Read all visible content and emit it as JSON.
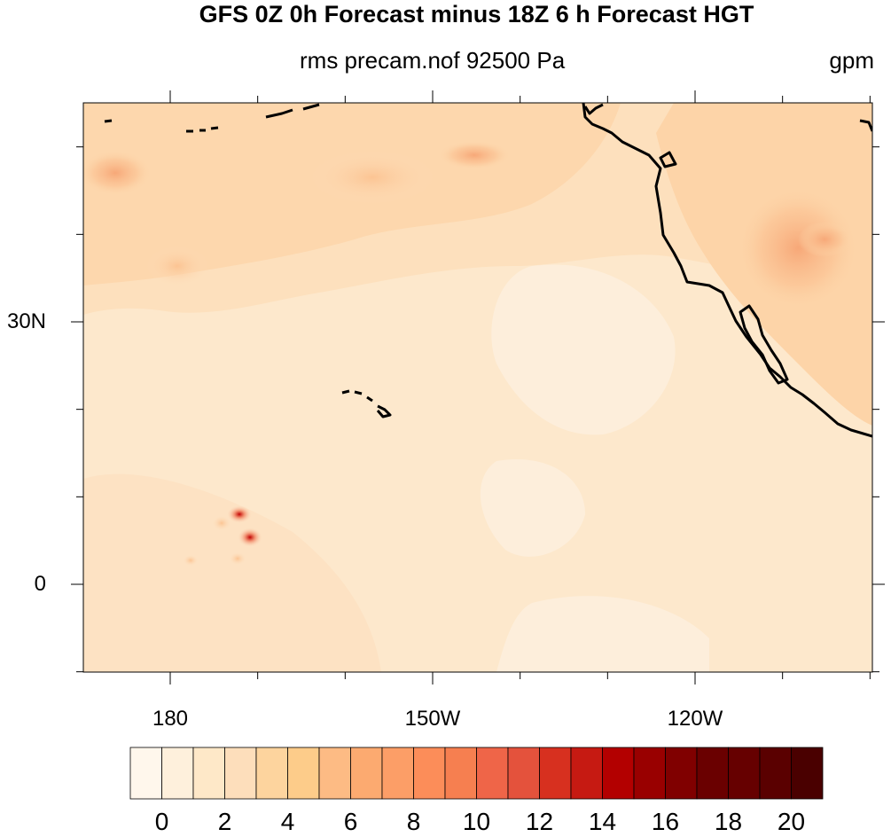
{
  "title": "GFS 0Z 0h Forecast minus 18Z 6 h Forecast HGT",
  "subtitle": "rms precam.nof 92500 Pa",
  "units": "gpm",
  "map": {
    "lat_labels": [
      {
        "text": "30N",
        "lat": 30
      },
      {
        "text": "0",
        "lat": 0
      }
    ],
    "lon_labels": [
      {
        "text": "180",
        "lon": 180
      },
      {
        "text": "150W",
        "lon": 210
      },
      {
        "text": "120W",
        "lon": 240
      }
    ]
  },
  "colorbar": {
    "colors": [
      "#fff7ec",
      "#fef0dc",
      "#fee8c8",
      "#fddebb",
      "#fdd49e",
      "#fdcc8a",
      "#fdbb84",
      "#fcaa70",
      "#fc9e67",
      "#fc8d59",
      "#f67f50",
      "#ef6548",
      "#e4523c",
      "#d7301f",
      "#c61a12",
      "#b30000",
      "#990000",
      "#800000",
      "#6a0000",
      "#660000",
      "#5a0000",
      "#4a0000"
    ],
    "labels": [
      {
        "text": "0",
        "value": 0
      },
      {
        "text": "2",
        "value": 2
      },
      {
        "text": "4",
        "value": 4
      },
      {
        "text": "6",
        "value": 6
      },
      {
        "text": "8",
        "value": 8
      },
      {
        "text": "10",
        "value": 10
      },
      {
        "text": "12",
        "value": 12
      },
      {
        "text": "14",
        "value": 14
      },
      {
        "text": "16",
        "value": 16
      },
      {
        "text": "18",
        "value": 18
      },
      {
        "text": "20",
        "value": 20
      }
    ]
  }
}
